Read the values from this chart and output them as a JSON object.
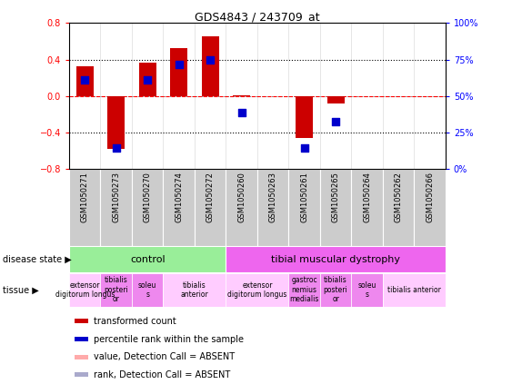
{
  "title": "GDS4843 / 243709_at",
  "samples": [
    "GSM1050271",
    "GSM1050273",
    "GSM1050270",
    "GSM1050274",
    "GSM1050272",
    "GSM1050260",
    "GSM1050263",
    "GSM1050261",
    "GSM1050265",
    "GSM1050264",
    "GSM1050262",
    "GSM1050266"
  ],
  "transformed_count": [
    0.33,
    -0.58,
    0.37,
    0.53,
    0.65,
    0.01,
    0.0,
    -0.46,
    -0.08,
    0.0,
    0.0,
    0.0
  ],
  "percentile_rank": [
    0.18,
    -0.57,
    0.18,
    0.35,
    0.4,
    -0.18,
    null,
    -0.57,
    -0.28,
    null,
    null,
    null
  ],
  "bar_color": "#cc0000",
  "dot_color": "#0000cc",
  "absent_bar_color": "#ffaaaa",
  "absent_dot_color": "#aaaacc",
  "ylim_left": [
    -0.8,
    0.8
  ],
  "ylim_right": [
    0,
    100
  ],
  "yticks_left": [
    -0.8,
    -0.4,
    0.0,
    0.4,
    0.8
  ],
  "yticks_right": [
    0,
    25,
    50,
    75,
    100
  ],
  "yticks_right_labels": [
    "0%",
    "25%",
    "50%",
    "75%",
    "100%"
  ],
  "hline_dotted": [
    -0.4,
    0.4
  ],
  "disease_state_control": {
    "label": "control",
    "start": 0,
    "end": 4,
    "color": "#99ee99"
  },
  "disease_state_dystrophy": {
    "label": "tibial muscular dystrophy",
    "start": 5,
    "end": 11,
    "color": "#ee66ee"
  },
  "tissue_defs": [
    {
      "label": "extensor\ndigitorum longus",
      "start": 0,
      "end": 0,
      "color": "#ffccff"
    },
    {
      "label": "tibialis\nposteri\nor",
      "start": 1,
      "end": 1,
      "color": "#ee88ee"
    },
    {
      "label": "soleu\ns",
      "start": 2,
      "end": 2,
      "color": "#ee88ee"
    },
    {
      "label": "tibialis\nanterior",
      "start": 3,
      "end": 4,
      "color": "#ffccff"
    },
    {
      "label": "extensor\ndigitorum longus",
      "start": 5,
      "end": 6,
      "color": "#ffccff"
    },
    {
      "label": "gastroc\nnemius\nmedialis",
      "start": 7,
      "end": 7,
      "color": "#ee88ee"
    },
    {
      "label": "tibialis\nposteri\nor",
      "start": 8,
      "end": 8,
      "color": "#ee88ee"
    },
    {
      "label": "soleu\ns",
      "start": 9,
      "end": 9,
      "color": "#ee88ee"
    },
    {
      "label": "tibialis anterior",
      "start": 10,
      "end": 11,
      "color": "#ffccff"
    }
  ],
  "legend_items": [
    {
      "label": "transformed count",
      "color": "#cc0000"
    },
    {
      "label": "percentile rank within the sample",
      "color": "#0000cc"
    },
    {
      "label": "value, Detection Call = ABSENT",
      "color": "#ffaaaa"
    },
    {
      "label": "rank, Detection Call = ABSENT",
      "color": "#aaaacc"
    }
  ]
}
